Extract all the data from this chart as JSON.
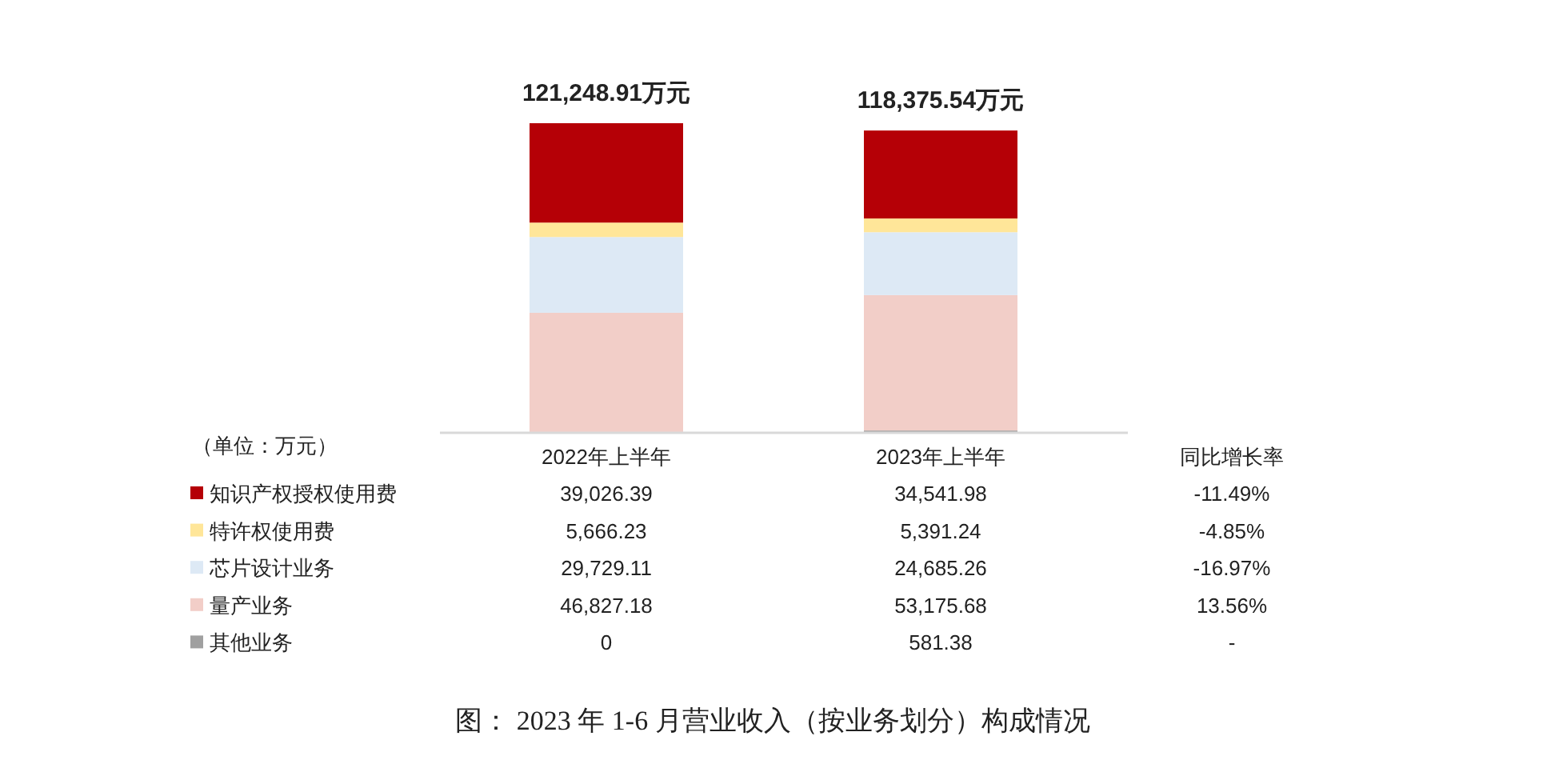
{
  "chart_data": {
    "type": "bar",
    "stacked": true,
    "legend": "bottom left",
    "categories": [
      "2022年上半年",
      "2023年上半年"
    ],
    "series": [
      {
        "name": "其他业务",
        "color": "#a0a0a0",
        "values": [
          0,
          581.38
        ],
        "value_labels": [
          "0",
          "581.38"
        ]
      },
      {
        "name": "量产业务",
        "color": "#f2cec8",
        "values": [
          46827.18,
          53175.68
        ],
        "value_labels": [
          "46,827.18",
          "53,175.68"
        ]
      },
      {
        "name": "芯片设计业务",
        "color": "#dde9f5",
        "values": [
          29729.11,
          24685.26
        ],
        "value_labels": [
          "29,729.11",
          "24,685.26"
        ]
      },
      {
        "name": "特许权使用费",
        "color": "#ffe699",
        "values": [
          5666.23,
          5391.24
        ],
        "value_labels": [
          "5,666.23",
          "5,391.24"
        ]
      },
      {
        "name": "知识产权授权使用费",
        "color": "#b50006",
        "values": [
          39026.39,
          34541.98
        ],
        "value_labels": [
          "39,026.39",
          "34,541.98"
        ]
      }
    ],
    "totals": [
      "121,248.91万元",
      "118,375.54万元"
    ],
    "annotations": [
      "（单位：万元）",
      "同比增长率",
      "-11.49%",
      "-4.85%",
      "-16.97%",
      "13.56%",
      "-",
      "图： 2023 年 1-6 月营业收入（按业务划分）构成情况"
    ]
  }
}
